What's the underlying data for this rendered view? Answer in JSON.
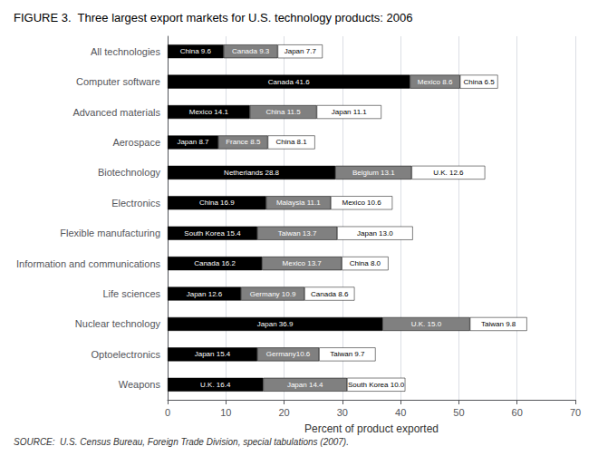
{
  "chart_data": {
    "type": "bar",
    "title": "FIGURE 3.  Three largest export markets for U.S. technology products: 2006",
    "xlabel": "Percent of product exported",
    "annotations": [
      "SOURCE:  U.S. Census Bureau, Foreign Trade Division, special tabulations (2007)."
    ],
    "orientation": "horizontal",
    "stacked": true,
    "data_labels": true,
    "grid": true,
    "categories": [
      "All technologies",
      "Computer software",
      "Advanced materials",
      "Aerospace",
      "Biotechnology",
      "Electronics",
      "Flexible manufacturing",
      "Information and communications",
      "Life sciences",
      "Nuclear technology",
      "Optoelectronics",
      "Weapons"
    ],
    "series": [
      {
        "color": "#000000",
        "values": [
          9.6,
          41.6,
          14.1,
          8.7,
          28.8,
          16.9,
          15.4,
          16.2,
          12.6,
          36.9,
          15.4,
          16.4
        ],
        "value_labels": [
          "China 9.6",
          "Canada 41.6",
          "Mexico 14.1",
          "Japan 8.7",
          "Netherlands 28.8",
          "China 16.9",
          "South Korea 15.4",
          "Canada 16.2",
          "Japan 12.6",
          "Japan 36.9",
          "Japan 15.4",
          "U.K. 16.4"
        ]
      },
      {
        "color": "#808080",
        "values": [
          9.3,
          8.6,
          11.5,
          8.5,
          13.1,
          11.1,
          13.7,
          13.7,
          10.9,
          15.0,
          10.6,
          14.4
        ],
        "value_labels": [
          "Canada 9.3",
          "Mexico 8.6",
          "China 11.5",
          "France 8.5",
          "Belgium 13.1",
          "Malaysia 11.1",
          "Taiwan 13.7",
          "Mexico 13.7",
          "Germany 10.9",
          "U.K. 15.0",
          "Germany10.6",
          "Japan 14.4"
        ]
      },
      {
        "color": "#ffffff",
        "values": [
          7.7,
          6.5,
          11.1,
          8.1,
          12.6,
          10.6,
          13.0,
          8.0,
          8.6,
          9.8,
          9.7,
          10.0
        ],
        "value_labels": [
          "Japan 7.7",
          "China 6.5",
          "Japan 11.1",
          "China 8.1",
          "U.K. 12.6",
          "Mexico 10.6",
          "Japan 13.0",
          "China 8.0",
          "Canada 8.6",
          "Taiwan 9.8",
          "Taiwan 9.7",
          "South Korea 10.0"
        ]
      }
    ],
    "xlim": [
      0,
      70
    ],
    "xticks": [
      0,
      10,
      20,
      30,
      40,
      50,
      60,
      70
    ]
  }
}
